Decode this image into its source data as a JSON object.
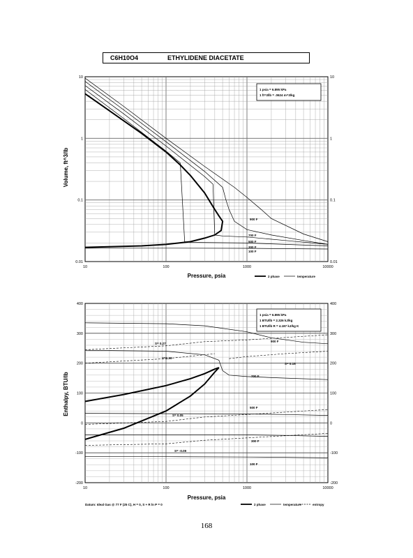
{
  "header": {
    "formula": "C6H10O4",
    "name": "ETHYLIDENE DIACETATE"
  },
  "page_number": "168",
  "chart_data": [
    {
      "type": "line",
      "x_scale": "log",
      "y_scale": "log",
      "xlim": [
        10,
        10000
      ],
      "ylim": [
        0.01,
        10
      ],
      "grid": true,
      "xlabel": "Pressure,  psia",
      "ylabel": "Volume, ft^3/lb",
      "x_ticks": [
        "10",
        "100",
        "1000",
        "10000"
      ],
      "y_ticks_left": [
        "0.01",
        "0.1",
        "1",
        "10"
      ],
      "y_ticks_right": [
        "0.01",
        "0.1",
        "1",
        "10"
      ],
      "conversion_box": [
        "1 psia = 6.895 kPa",
        "1 ft^3/lb = .0624 m^3/kg"
      ],
      "legend": [
        "2 phase",
        "temperature"
      ],
      "legend_placement": "bottom-right",
      "series": [
        {
          "role": "2 phase",
          "x": [
            10,
            20,
            50,
            100,
            150,
            200,
            300,
            400,
            450,
            500,
            480,
            400,
            300,
            200,
            100,
            50,
            10
          ],
          "y": [
            5.3,
            2.8,
            1.2,
            0.6,
            0.37,
            0.25,
            0.13,
            0.07,
            0.055,
            0.045,
            0.032,
            0.027,
            0.024,
            0.021,
            0.019,
            0.018,
            0.017
          ]
        },
        {
          "name": "900 F",
          "x": [
            10,
            30,
            100,
            300,
            700,
            1000,
            1500,
            2000,
            5000,
            10000
          ],
          "y": [
            9.5,
            3.3,
            1.0,
            0.35,
            0.16,
            0.11,
            0.07,
            0.05,
            0.028,
            0.021
          ]
        },
        {
          "name": "700 F",
          "x": [
            10,
            30,
            100,
            300,
            500,
            550,
            600,
            700,
            1000,
            2000,
            5000,
            10000
          ],
          "y": [
            8.4,
            2.9,
            0.88,
            0.29,
            0.16,
            0.1,
            0.07,
            0.045,
            0.033,
            0.027,
            0.022,
            0.019
          ]
        },
        {
          "name": "500 F",
          "x": [
            10,
            30,
            100,
            300,
            380,
            400,
            500,
            1000,
            3000,
            10000
          ],
          "y": [
            7.2,
            2.5,
            0.75,
            0.24,
            0.18,
            0.027,
            0.026,
            0.025,
            0.022,
            0.019
          ]
        },
        {
          "name": "300 F",
          "x": [
            10,
            30,
            100,
            150,
            170,
            200,
            1000,
            10000
          ],
          "y": [
            6.2,
            2.1,
            0.62,
            0.4,
            0.021,
            0.0205,
            0.02,
            0.018
          ]
        },
        {
          "name": "100 F",
          "x": [
            10,
            100,
            1000,
            10000
          ],
          "y": [
            0.0165,
            0.0165,
            0.0164,
            0.016
          ]
        }
      ]
    },
    {
      "type": "line",
      "x_scale": "log",
      "xlim": [
        10,
        10000
      ],
      "ylim": [
        -200,
        400
      ],
      "grid": true,
      "xlabel": "Pressure,  psia",
      "ylabel": "Enthalpy, BTU/lb",
      "x_ticks": [
        "10",
        "100",
        "1000",
        "10000"
      ],
      "y_ticks_left": [
        "-200",
        "-100",
        "0",
        "100",
        "200",
        "300",
        "400"
      ],
      "y_ticks_right": [
        "-200",
        "-100",
        "0",
        "100",
        "200",
        "300",
        "400"
      ],
      "conversion_box": [
        "1 psia = 6.895 kPa",
        "1 BTU/lb = 2.326 kJ/kg",
        "1 BTU/lb R = 4.187 kJ/kg K"
      ],
      "legend": [
        "2 phase",
        "temperature",
        "entropy"
      ],
      "legend_placement": "bottom-right",
      "footnote": "Datum: Ideal Gas @ 77 F (25 C), H = 0, S + R ln P = 0",
      "series": [
        {
          "role": "2 phase",
          "x": [
            10,
            30,
            100,
            200,
            300,
            400,
            450,
            400,
            300,
            200,
            100,
            30,
            10
          ],
          "y": [
            72,
            95,
            125,
            148,
            165,
            180,
            185,
            170,
            130,
            90,
            40,
            -18,
            -55
          ]
        },
        {
          "name": "900 F",
          "x": [
            10,
            100,
            300,
            1000,
            2000,
            5000,
            10000
          ],
          "y": [
            335,
            332,
            325,
            305,
            285,
            270,
            265
          ]
        },
        {
          "name": "700 F",
          "x": [
            10,
            100,
            300,
            450,
            500,
            600,
            1000,
            3000,
            10000
          ],
          "y": [
            243,
            240,
            228,
            210,
            175,
            160,
            155,
            150,
            145
          ]
        },
        {
          "name": "500 F",
          "x": [
            10,
            100,
            1000,
            3000,
            10000
          ],
          "y": [
            32,
            31,
            30,
            28,
            25
          ]
        },
        {
          "name": "300 F",
          "x": [
            10,
            100,
            1000,
            3000,
            10000
          ],
          "y": [
            -40,
            -40,
            -40,
            -42,
            -45
          ]
        },
        {
          "name": "100 F",
          "x": [
            10,
            100,
            1000,
            3000,
            10000
          ],
          "y": [
            -113,
            -113,
            -114,
            -115,
            -117
          ]
        }
      ],
      "entropy_labels": [
        "S= 0.27",
        "S=0.23",
        "S= 0.15",
        "S= 0.05",
        "S= -0.09"
      ]
    }
  ]
}
